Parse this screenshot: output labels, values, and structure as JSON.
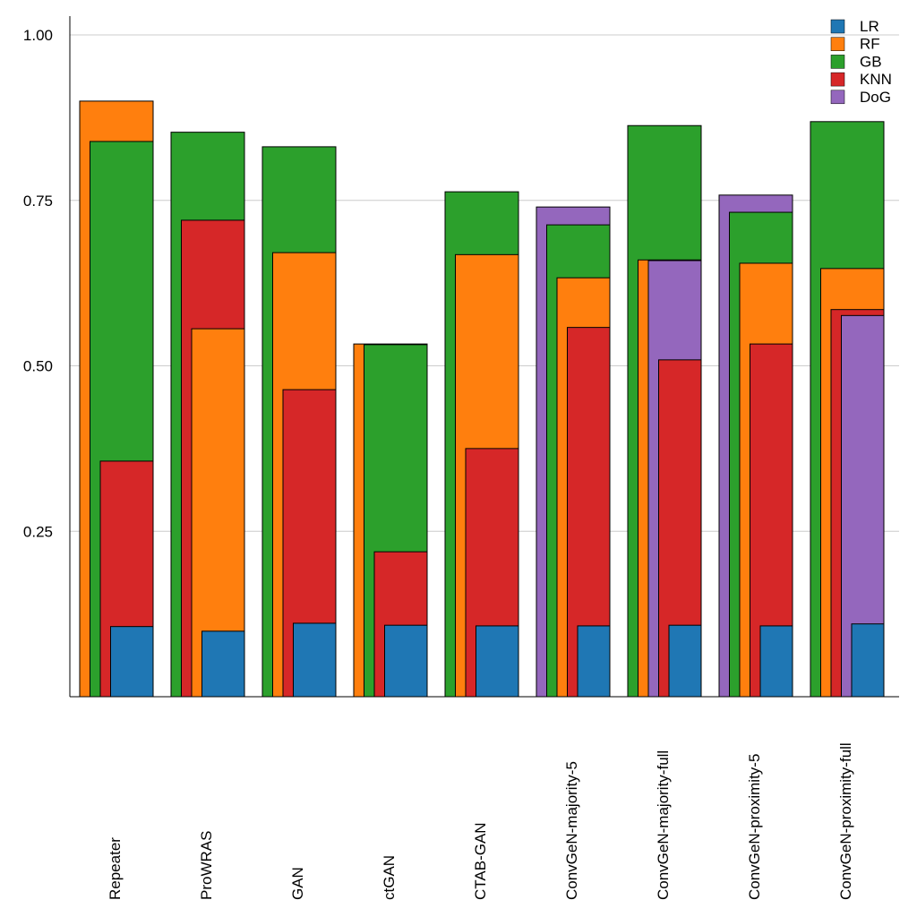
{
  "chart_data": {
    "type": "bar",
    "mode": "overlapping-sorted",
    "title": "",
    "xlabel": "",
    "ylabel": "",
    "ylim": [
      0,
      1.0
    ],
    "yticks": [
      0.25,
      0.5,
      0.75,
      1.0
    ],
    "ytick_labels": [
      "0.25",
      "0.50",
      "0.75",
      "1.00"
    ],
    "grid": "horizontal",
    "legend_position": "top-right",
    "categories": [
      "Repeater",
      "ProWRAS",
      "GAN",
      "ctGAN",
      "CTAB-GAN",
      "ConvGeN-majority-5",
      "ConvGeN-majority-full",
      "ConvGeN-proximity-5",
      "ConvGeN-proximity-full"
    ],
    "series": [
      {
        "name": "LR",
        "color": "#1f77b4",
        "values": [
          0.106,
          0.099,
          0.111,
          0.108,
          0.107,
          0.107,
          0.108,
          0.107,
          0.11
        ]
      },
      {
        "name": "RF",
        "color": "#ff7f0e",
        "values": [
          0.9,
          0.556,
          0.671,
          0.533,
          0.668,
          0.633,
          0.66,
          0.655,
          0.647
        ]
      },
      {
        "name": "GB",
        "color": "#2ca02c",
        "values": [
          0.839,
          0.853,
          0.831,
          0.532,
          0.763,
          0.713,
          0.863,
          0.732,
          0.869
        ]
      },
      {
        "name": "KNN",
        "color": "#d62728",
        "values": [
          0.356,
          0.72,
          0.464,
          0.219,
          0.375,
          0.558,
          0.509,
          0.533,
          0.585
        ]
      },
      {
        "name": "DoG",
        "color": "#9467bd",
        "values": [
          null,
          null,
          null,
          null,
          null,
          0.74,
          0.659,
          0.758,
          0.576
        ]
      }
    ]
  }
}
